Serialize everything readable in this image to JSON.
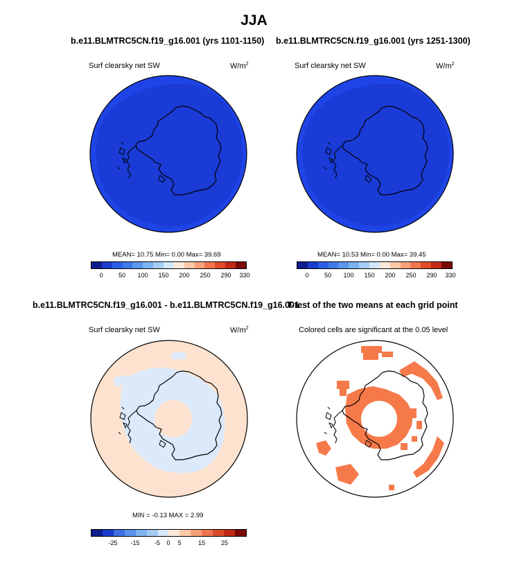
{
  "figure": {
    "title": "JJA"
  },
  "panels": [
    {
      "title": "b.e11.BLMTRC5CN.f19_g16.001 (yrs 1101-1150)",
      "left_label": "Surf clearsky net SW",
      "units_base": "W/m",
      "units_exp": "2",
      "stats": "MEAN=  10.75  Min=   0.00  Max=  39.69",
      "colorbar_ticks": [
        "0",
        "50",
        "100",
        "150",
        "200",
        "250",
        "290",
        "330"
      ]
    },
    {
      "title": "b.e11.BLMTRC5CN.f19_g16.001 (yrs 1251-1300)",
      "left_label": "Surf clearsky net SW",
      "units_base": "W/m",
      "units_exp": "2",
      "stats": "MEAN=  10.53  Min=   0.00  Max=  39.45",
      "colorbar_ticks": [
        "0",
        "50",
        "100",
        "150",
        "200",
        "250",
        "290",
        "330"
      ]
    },
    {
      "title": "b.e11.BLMTRC5CN.f19_g16.001 - b.e11.BLMTRC5CN.f19_g16.001",
      "left_label": "Surf clearsky net SW",
      "units_base": "W/m",
      "units_exp": "2",
      "stats": "MIN = -0.13  MAX =   2.99",
      "colorbar_ticks": [
        "-25",
        "-15",
        "-5",
        "0",
        "5",
        "15",
        "25"
      ]
    },
    {
      "title": "T-test of the two means at each grid point",
      "left_label": "Colored cells are significant at the 0.05 level"
    }
  ],
  "colors": {
    "field_outer": "#1f44e6",
    "field_inner": "#1a3bd6",
    "diff_positive": "#fde3cf",
    "diff_negative": "#dbe9fb",
    "significant": "#f6794a",
    "scale_full": [
      "#0c1d8c",
      "#1b3ccf",
      "#2c5fe8",
      "#3e7ae8",
      "#5a97ed",
      "#7cb3f1",
      "#a5cdf5",
      "#d3e7fb",
      "#fde9da",
      "#fbc8a6",
      "#f7a07a",
      "#f2754e",
      "#e14b2a",
      "#c02a17",
      "#7a0b06"
    ],
    "scale_diff": [
      "#0c1d8c",
      "#1b3ccf",
      "#3e6fe3",
      "#5a94ec",
      "#7fb2f1",
      "#a6cdf5",
      "#d6e8fb",
      "#fde9da",
      "#fbc9a8",
      "#f6a07a",
      "#ee744d",
      "#dc4b2b",
      "#bf2a18",
      "#7a0b06"
    ]
  },
  "chart_data": [
    {
      "type": "heatmap",
      "map": "south polar stereographic",
      "title": "b.e11.BLMTRC5CN.f19_g16.001 (yrs 1101-1150)",
      "variable": "Surf clearsky net SW",
      "units": "W/m2",
      "mean": 10.75,
      "min": 0.0,
      "max": 39.69,
      "contour_levels": [
        0,
        50,
        100,
        150,
        200,
        250,
        290,
        330
      ]
    },
    {
      "type": "heatmap",
      "map": "south polar stereographic",
      "title": "b.e11.BLMTRC5CN.f19_g16.001 (yrs 1251-1300)",
      "variable": "Surf clearsky net SW",
      "units": "W/m2",
      "mean": 10.53,
      "min": 0.0,
      "max": 39.45,
      "contour_levels": [
        0,
        50,
        100,
        150,
        200,
        250,
        290,
        330
      ]
    },
    {
      "type": "heatmap",
      "map": "south polar stereographic",
      "title": "b.e11.BLMTRC5CN.f19_g16.001 - b.e11.BLMTRC5CN.f19_g16.001",
      "variable": "Surf clearsky net SW",
      "units": "W/m2",
      "min": -0.13,
      "max": 2.99,
      "contour_levels": [
        -25,
        -15,
        -5,
        0,
        5,
        15,
        25
      ]
    },
    {
      "type": "heatmap",
      "map": "south polar stereographic",
      "title": "T-test of the two means at each grid point",
      "note": "Colored cells are significant at the 0.05 level"
    }
  ]
}
